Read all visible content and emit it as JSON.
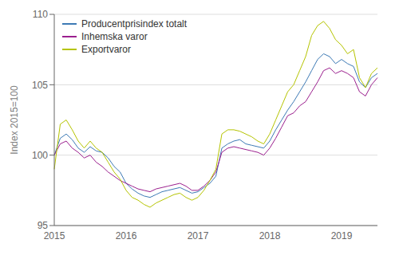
{
  "chart_data": {
    "type": "line",
    "ylabel": "Index 2015=100",
    "categories": [
      "2015",
      null,
      null,
      null,
      null,
      null,
      null,
      null,
      null,
      null,
      null,
      null,
      "2016",
      null,
      null,
      null,
      null,
      null,
      null,
      null,
      null,
      null,
      null,
      null,
      "2017",
      null,
      null,
      null,
      null,
      null,
      null,
      null,
      null,
      null,
      null,
      null,
      "2018",
      null,
      null,
      null,
      null,
      null,
      null,
      null,
      null,
      null,
      null,
      null,
      "2019",
      null,
      null,
      null,
      null,
      null,
      null
    ],
    "series": [
      {
        "name": "Producentprisindex totalt",
        "color": "#3d7ab5",
        "values": [
          100.0,
          101.2,
          101.5,
          101.1,
          100.5,
          100.2,
          100.6,
          100.3,
          100.2,
          99.8,
          99.2,
          98.8,
          98.0,
          97.6,
          97.3,
          97.1,
          97.0,
          97.2,
          97.4,
          97.5,
          97.6,
          97.7,
          97.5,
          97.3,
          97.4,
          97.7,
          98.0,
          98.5,
          100.5,
          100.8,
          101.0,
          101.1,
          100.8,
          100.7,
          100.6,
          100.5,
          101.0,
          101.8,
          102.5,
          103.2,
          103.8,
          104.5,
          105.2,
          106.0,
          106.8,
          107.2,
          107.0,
          106.5,
          106.8,
          106.5,
          106.3,
          105.2,
          104.8,
          105.5,
          105.8
        ]
      },
      {
        "name": "Inhemska varor",
        "color": "#9b1f8e",
        "values": [
          100.0,
          100.8,
          101.0,
          100.5,
          100.2,
          99.8,
          100.0,
          99.5,
          99.2,
          98.8,
          98.5,
          98.2,
          98.0,
          97.8,
          97.6,
          97.5,
          97.4,
          97.6,
          97.7,
          97.8,
          97.9,
          98.0,
          97.8,
          97.5,
          97.5,
          97.8,
          98.2,
          98.8,
          100.2,
          100.5,
          100.6,
          100.5,
          100.4,
          100.3,
          100.2,
          100.0,
          100.5,
          101.2,
          102.0,
          102.8,
          103.0,
          103.5,
          103.8,
          104.5,
          105.2,
          106.0,
          106.2,
          105.8,
          106.0,
          105.8,
          105.5,
          104.5,
          104.2,
          105.0,
          105.5
        ]
      },
      {
        "name": "Exportvaror",
        "color": "#b5c400",
        "values": [
          99.0,
          102.2,
          102.5,
          101.8,
          101.0,
          100.5,
          101.0,
          100.5,
          100.2,
          99.5,
          98.8,
          98.3,
          97.5,
          97.0,
          96.8,
          96.5,
          96.3,
          96.6,
          96.8,
          97.0,
          97.2,
          97.3,
          97.0,
          96.8,
          97.0,
          97.5,
          98.2,
          99.0,
          101.5,
          101.8,
          101.8,
          101.7,
          101.5,
          101.3,
          101.0,
          100.8,
          101.5,
          102.5,
          103.5,
          104.5,
          105.0,
          106.0,
          107.0,
          108.5,
          109.2,
          109.5,
          109.0,
          108.2,
          107.8,
          107.2,
          107.5,
          105.5,
          104.8,
          105.8,
          106.2
        ]
      }
    ],
    "ylim": [
      95,
      110
    ],
    "yticks": [
      95,
      100,
      105,
      110
    ],
    "grid": "y",
    "legend": "upper left"
  }
}
